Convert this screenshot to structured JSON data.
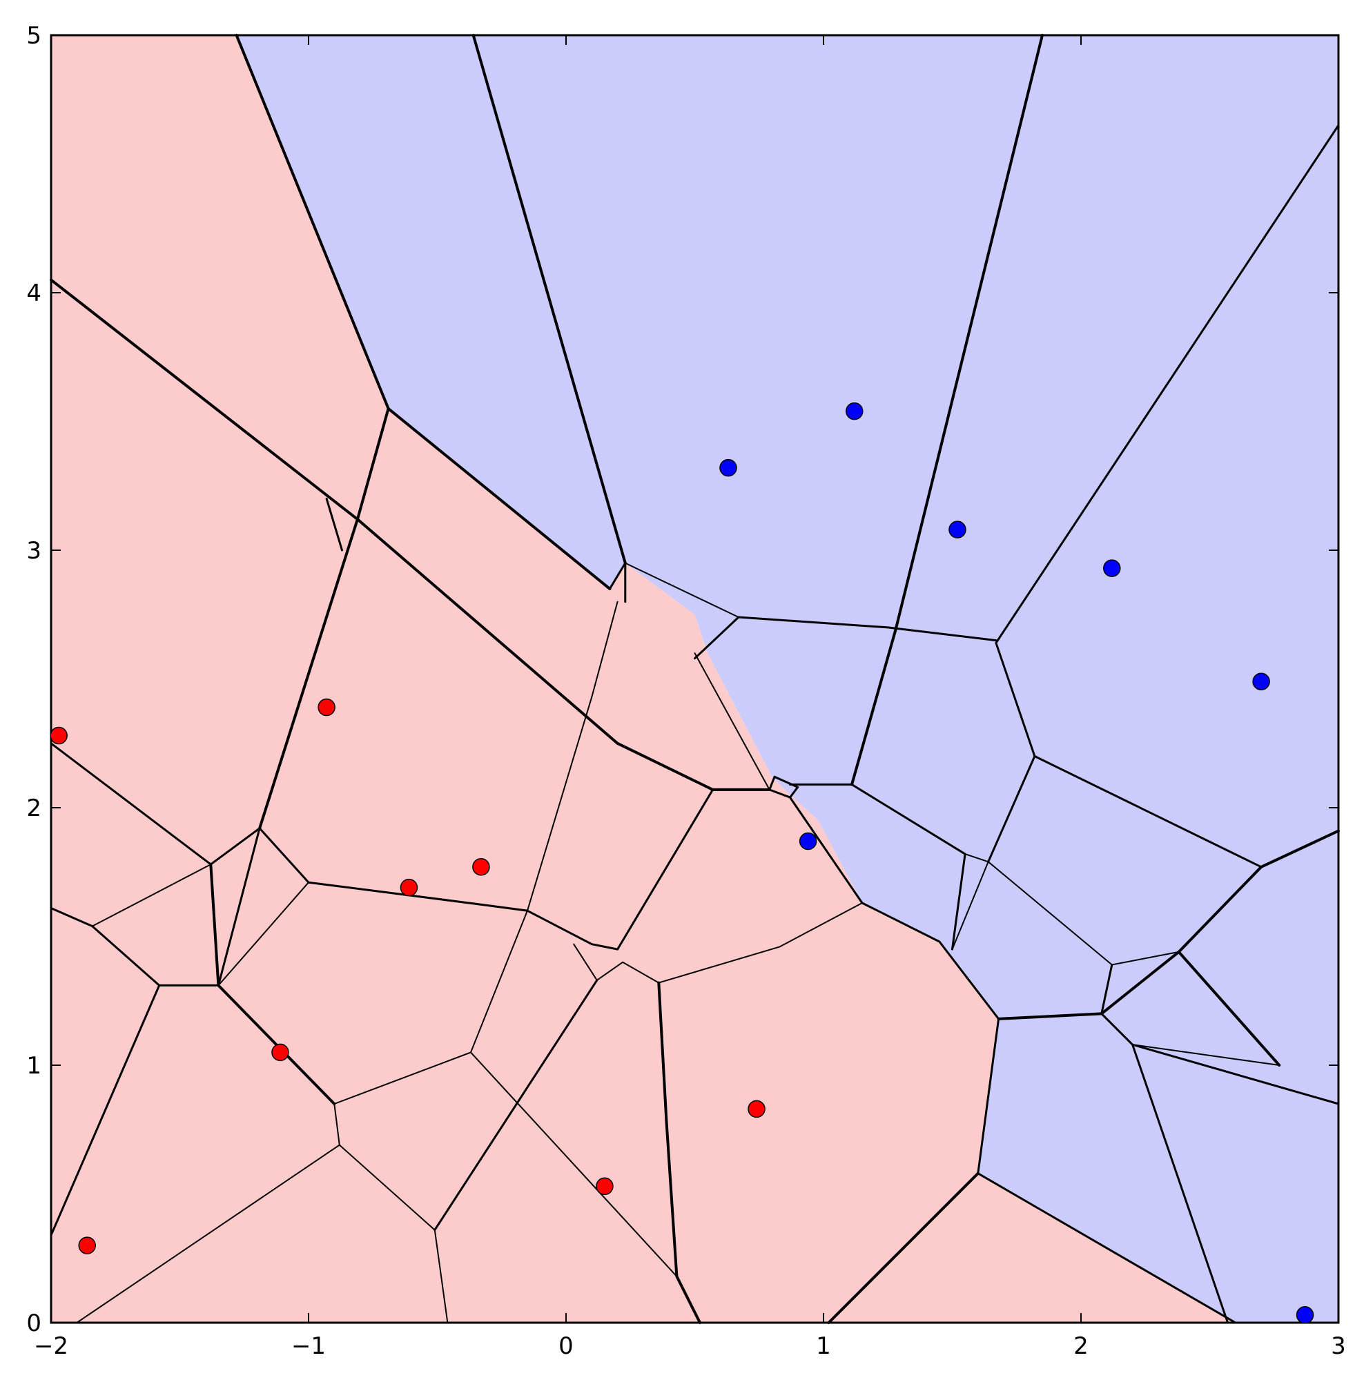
{
  "chart_data": {
    "type": "scatter",
    "title": "",
    "xlabel": "",
    "ylabel": "",
    "xlim": [
      -2,
      3
    ],
    "ylim": [
      0,
      5
    ],
    "x_ticks": [
      -2,
      -1,
      0,
      1,
      2,
      3
    ],
    "y_ticks": [
      0,
      1,
      2,
      3,
      4,
      5
    ],
    "x_tick_labels": [
      "−2",
      "−1",
      "0",
      "1",
      "2",
      "3"
    ],
    "y_tick_labels": [
      "0",
      "1",
      "2",
      "3",
      "4",
      "5"
    ],
    "grid": false,
    "legend": "none",
    "colors": {
      "class_red_point": "#ff0000",
      "class_blue_point": "#0000ff",
      "class_red_region": "#fccbcb",
      "class_blue_region": "#cbcbfc",
      "boundary": "#000000"
    },
    "series": [
      {
        "color": "#ff0000",
        "points": [
          [
            -1.97,
            2.28
          ],
          [
            -0.93,
            2.39
          ],
          [
            -0.61,
            1.69
          ],
          [
            -0.33,
            1.77
          ],
          [
            -1.11,
            1.05
          ],
          [
            0.15,
            0.53
          ],
          [
            0.74,
            0.83
          ],
          [
            -1.86,
            0.3
          ]
        ]
      },
      {
        "color": "#0000ff",
        "points": [
          [
            0.63,
            3.32
          ],
          [
            1.12,
            3.54
          ],
          [
            1.52,
            3.08
          ],
          [
            2.12,
            2.93
          ],
          [
            2.7,
            2.49
          ],
          [
            0.94,
            1.87
          ],
          [
            2.87,
            0.03
          ]
        ]
      }
    ],
    "regions": [
      {
        "class": "red",
        "polygon": [
          [
            -2,
            5
          ],
          [
            -1.28,
            5
          ],
          [
            -0.69,
            3.55
          ],
          [
            0.17,
            2.85
          ],
          [
            0.23,
            2.95
          ],
          [
            0.5,
            2.75
          ],
          [
            0.55,
            2.6
          ],
          [
            0.8,
            2.12
          ],
          [
            0.85,
            2.07
          ],
          [
            0.98,
            1.95
          ],
          [
            1.15,
            1.63
          ],
          [
            1.45,
            1.48
          ],
          [
            1.68,
            1.18
          ],
          [
            1.6,
            0.58
          ],
          [
            2.6,
            0
          ],
          [
            -2,
            0
          ]
        ]
      },
      {
        "class": "blue",
        "polygon": [
          [
            -1.28,
            5
          ],
          [
            3,
            5
          ],
          [
            3,
            0
          ],
          [
            2.6,
            0
          ],
          [
            1.6,
            0.58
          ],
          [
            1.68,
            1.18
          ],
          [
            1.45,
            1.48
          ],
          [
            1.15,
            1.63
          ],
          [
            0.98,
            1.95
          ],
          [
            0.85,
            2.07
          ],
          [
            0.8,
            2.12
          ],
          [
            0.55,
            2.6
          ],
          [
            0.5,
            2.75
          ],
          [
            0.23,
            2.95
          ],
          [
            0.17,
            2.85
          ],
          [
            -0.69,
            3.55
          ]
        ]
      }
    ],
    "boundaries": [
      {
        "w": 4,
        "pts": [
          [
            -1.28,
            5
          ],
          [
            -0.69,
            3.55
          ]
        ]
      },
      {
        "w": 4,
        "pts": [
          [
            -0.69,
            3.55
          ],
          [
            0.17,
            2.85
          ]
        ]
      },
      {
        "w": 3,
        "pts": [
          [
            0.17,
            2.85
          ],
          [
            0.23,
            2.95
          ],
          [
            0.23,
            2.8
          ]
        ]
      },
      {
        "w": 4,
        "pts": [
          [
            -0.36,
            5
          ],
          [
            0.23,
            2.95
          ]
        ]
      },
      {
        "w": 2,
        "pts": [
          [
            0.23,
            2.95
          ],
          [
            0.67,
            2.74
          ]
        ]
      },
      {
        "w": 4,
        "pts": [
          [
            1.85,
            5
          ],
          [
            1.28,
            2.69
          ]
        ]
      },
      {
        "w": 3,
        "pts": [
          [
            3,
            4.65
          ],
          [
            1.67,
            2.64
          ]
        ]
      },
      {
        "w": 3,
        "pts": [
          [
            0.67,
            2.74
          ],
          [
            1.25,
            2.7
          ],
          [
            1.67,
            2.65
          ]
        ]
      },
      {
        "w": 3,
        "pts": [
          [
            0.67,
            2.74
          ],
          [
            0.5,
            2.58
          ]
        ]
      },
      {
        "w": 4,
        "pts": [
          [
            1.28,
            2.69
          ],
          [
            1.11,
            2.09
          ]
        ]
      },
      {
        "w": 4,
        "pts": [
          [
            -2,
            4.05
          ],
          [
            -0.81,
            3.12
          ]
        ]
      },
      {
        "w": 4,
        "pts": [
          [
            -0.69,
            3.55
          ],
          [
            -0.81,
            3.12
          ],
          [
            -1.19,
            1.92
          ]
        ]
      },
      {
        "w": 3,
        "pts": [
          [
            -0.93,
            3.2
          ],
          [
            -0.87,
            3.0
          ]
        ]
      },
      {
        "w": 4,
        "pts": [
          [
            -0.81,
            3.12
          ],
          [
            0.2,
            2.25
          ],
          [
            0.57,
            2.07
          ],
          [
            0.79,
            2.07
          ]
        ]
      },
      {
        "w": 3,
        "pts": [
          [
            -2,
            2.25
          ],
          [
            -1.38,
            1.78
          ]
        ]
      },
      {
        "w": 3,
        "pts": [
          [
            -1.38,
            1.78
          ],
          [
            -1.19,
            1.92
          ]
        ]
      },
      {
        "w": 3,
        "pts": [
          [
            -1.19,
            1.92
          ],
          [
            -1.0,
            1.71
          ],
          [
            -0.3,
            1.62
          ],
          [
            -0.15,
            1.6
          ]
        ]
      },
      {
        "w": 3,
        "pts": [
          [
            -1.19,
            1.92
          ],
          [
            -1.35,
            1.31
          ]
        ]
      },
      {
        "w": 2,
        "pts": [
          [
            -1.35,
            1.31
          ],
          [
            -1.0,
            1.71
          ]
        ]
      },
      {
        "w": 3,
        "pts": [
          [
            -2,
            1.61
          ],
          [
            -1.84,
            1.54
          ],
          [
            -1.58,
            1.31
          ],
          [
            -1.35,
            1.31
          ]
        ]
      },
      {
        "w": 2,
        "pts": [
          [
            -1.84,
            1.54
          ],
          [
            -1.38,
            1.78
          ]
        ]
      },
      {
        "w": 4,
        "pts": [
          [
            -1.38,
            1.78
          ],
          [
            -1.35,
            1.31
          ]
        ]
      },
      {
        "w": 3,
        "pts": [
          [
            -1.58,
            1.31
          ],
          [
            -2,
            0.34
          ]
        ]
      },
      {
        "w": 4,
        "pts": [
          [
            -1.35,
            1.31
          ],
          [
            -0.9,
            0.85
          ]
        ]
      },
      {
        "w": 2,
        "pts": [
          [
            -0.9,
            0.85
          ],
          [
            -0.88,
            0.69
          ],
          [
            -1.9,
            0
          ]
        ]
      },
      {
        "w": 2,
        "pts": [
          [
            -0.9,
            0.85
          ],
          [
            -0.37,
            1.05
          ],
          [
            -0.15,
            1.6
          ],
          [
            0.1,
            2.43
          ],
          [
            0.2,
            2.8
          ]
        ]
      },
      {
        "w": 2,
        "pts": [
          [
            -0.88,
            0.69
          ],
          [
            -0.51,
            0.36
          ],
          [
            -0.46,
            0
          ]
        ]
      },
      {
        "w": 2,
        "pts": [
          [
            -0.37,
            1.05
          ],
          [
            0.43,
            0.18
          ]
        ]
      },
      {
        "w": 3,
        "pts": [
          [
            -0.15,
            1.6
          ],
          [
            0.1,
            1.47
          ],
          [
            0.2,
            1.45
          ]
        ]
      },
      {
        "w": 2,
        "pts": [
          [
            0.03,
            1.47
          ],
          [
            0.12,
            1.33
          ],
          [
            0.22,
            1.4
          ],
          [
            0.36,
            1.32
          ]
        ]
      },
      {
        "w": 3,
        "pts": [
          [
            -0.51,
            0.36
          ],
          [
            0.12,
            1.33
          ]
        ]
      },
      {
        "w": 3,
        "pts": [
          [
            0.2,
            1.45
          ],
          [
            0.57,
            2.07
          ]
        ]
      },
      {
        "w": 4,
        "pts": [
          [
            0.36,
            1.32
          ],
          [
            0.39,
            0.78
          ],
          [
            0.43,
            0.18
          ],
          [
            0.52,
            0
          ]
        ]
      },
      {
        "w": 2,
        "pts": [
          [
            0.36,
            1.32
          ],
          [
            0.83,
            1.46
          ],
          [
            1.15,
            1.63
          ]
        ]
      },
      {
        "w": 2,
        "pts": [
          [
            0.5,
            2.6
          ],
          [
            0.79,
            2.07
          ]
        ]
      },
      {
        "w": 3,
        "pts": [
          [
            0.79,
            2.07
          ],
          [
            0.81,
            2.12
          ],
          [
            0.9,
            2.08
          ],
          [
            0.87,
            2.04
          ],
          [
            0.79,
            2.07
          ]
        ]
      },
      {
        "w": 3,
        "pts": [
          [
            0.87,
            2.09
          ],
          [
            1.11,
            2.09
          ],
          [
            1.55,
            1.82
          ]
        ]
      },
      {
        "w": 3,
        "pts": [
          [
            0.87,
            2.04
          ],
          [
            1.15,
            1.63
          ]
        ]
      },
      {
        "w": 3,
        "pts": [
          [
            1.15,
            1.63
          ],
          [
            1.45,
            1.48
          ],
          [
            1.68,
            1.18
          ]
        ]
      },
      {
        "w": 3,
        "pts": [
          [
            1.67,
            2.64
          ],
          [
            1.82,
            2.2
          ],
          [
            2.7,
            1.77
          ]
        ]
      },
      {
        "w": 3,
        "pts": [
          [
            1.82,
            2.2
          ],
          [
            1.64,
            1.79
          ]
        ]
      },
      {
        "w": 2,
        "pts": [
          [
            1.55,
            1.82
          ],
          [
            1.64,
            1.79
          ],
          [
            2.12,
            1.39
          ],
          [
            2.38,
            1.44
          ]
        ]
      },
      {
        "w": 3,
        "pts": [
          [
            1.55,
            1.82
          ],
          [
            1.5,
            1.45
          ]
        ]
      },
      {
        "w": 2,
        "pts": [
          [
            1.64,
            1.79
          ],
          [
            1.5,
            1.45
          ]
        ]
      },
      {
        "w": 4,
        "pts": [
          [
            3,
            1.91
          ],
          [
            2.7,
            1.77
          ],
          [
            2.38,
            1.44
          ],
          [
            2.08,
            1.2
          ],
          [
            1.68,
            1.18
          ]
        ]
      },
      {
        "w": 4,
        "pts": [
          [
            2.38,
            1.44
          ],
          [
            2.77,
            1.0
          ]
        ]
      },
      {
        "w": 3,
        "pts": [
          [
            2.12,
            1.39
          ],
          [
            2.08,
            1.2
          ],
          [
            2.2,
            1.08
          ],
          [
            3,
            0.85
          ]
        ]
      },
      {
        "w": 2,
        "pts": [
          [
            2.2,
            1.08
          ],
          [
            2.77,
            1.0
          ]
        ]
      },
      {
        "w": 3,
        "pts": [
          [
            2.2,
            1.08
          ],
          [
            2.57,
            0
          ]
        ]
      },
      {
        "w": 3,
        "pts": [
          [
            1.68,
            1.18
          ],
          [
            1.6,
            0.58
          ]
        ]
      },
      {
        "w": 4,
        "pts": [
          [
            1.6,
            0.58
          ],
          [
            1.02,
            0
          ]
        ]
      },
      {
        "w": 3,
        "pts": [
          [
            1.6,
            0.58
          ],
          [
            2.6,
            0
          ]
        ]
      }
    ]
  }
}
